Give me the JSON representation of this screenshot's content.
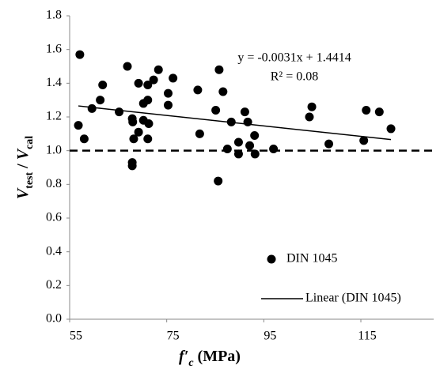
{
  "chart_data": {
    "type": "scatter",
    "ylabel": [
      "V",
      "test",
      " / ",
      "V",
      "cal"
    ],
    "xlabel": [
      "f′",
      "c",
      " (MPa)"
    ],
    "series": [
      {
        "name": "DIN 1045",
        "color": "#000000",
        "x": [
          57.1,
          56.8,
          58.0,
          59.6,
          61.3,
          61.8,
          65.2,
          66.9,
          67.9,
          68.0,
          68.2,
          67.9,
          67.9,
          69.2,
          69.2,
          70.2,
          70.2,
          71.1,
          71.1,
          71.3,
          71.1,
          72.3,
          73.3,
          75.3,
          75.3,
          76.3,
          81.4,
          81.8,
          85.8,
          85.1,
          85.6,
          86.6,
          87.5,
          88.3,
          89.8,
          89.8,
          91.1,
          91.7,
          92.1,
          93.1,
          93.2,
          97.0,
          104.4,
          104.9,
          108.4,
          116.1,
          118.8,
          115.6,
          121.2
        ],
        "values": [
          1.57,
          1.15,
          1.07,
          1.25,
          1.3,
          1.39,
          1.23,
          1.5,
          1.19,
          1.17,
          1.07,
          0.93,
          0.91,
          1.4,
          1.11,
          1.28,
          1.18,
          1.39,
          1.3,
          1.16,
          1.07,
          1.42,
          1.48,
          1.34,
          1.27,
          1.43,
          1.36,
          1.1,
          1.48,
          1.24,
          0.82,
          1.35,
          1.01,
          1.17,
          1.05,
          0.98,
          1.23,
          1.17,
          1.03,
          1.09,
          0.98,
          1.01,
          1.2,
          1.26,
          1.04,
          1.24,
          1.23,
          1.06,
          1.13
        ]
      }
    ],
    "trendline": {
      "name": "Linear (DIN 1045)",
      "equation": "y = -0.0031x + 1.4414",
      "r2": "R² = 0.08",
      "slope": -0.0031,
      "intercept": 1.4414,
      "color": "#000000"
    },
    "reference_line": {
      "value": 1.0,
      "color": "#000000",
      "style": "dashed"
    },
    "xlim": [
      55,
      130
    ],
    "xticks": [
      55,
      75,
      95,
      115
    ],
    "ylim": [
      0,
      1.8
    ],
    "yticks": [
      {
        "value": 0,
        "label": "0.0"
      },
      0.2,
      0.4,
      0.6,
      0.8,
      {
        "value": 1,
        "label": "1.0"
      },
      1.2,
      1.4,
      1.6,
      1.8
    ],
    "grid": false,
    "legend": "lower right"
  }
}
